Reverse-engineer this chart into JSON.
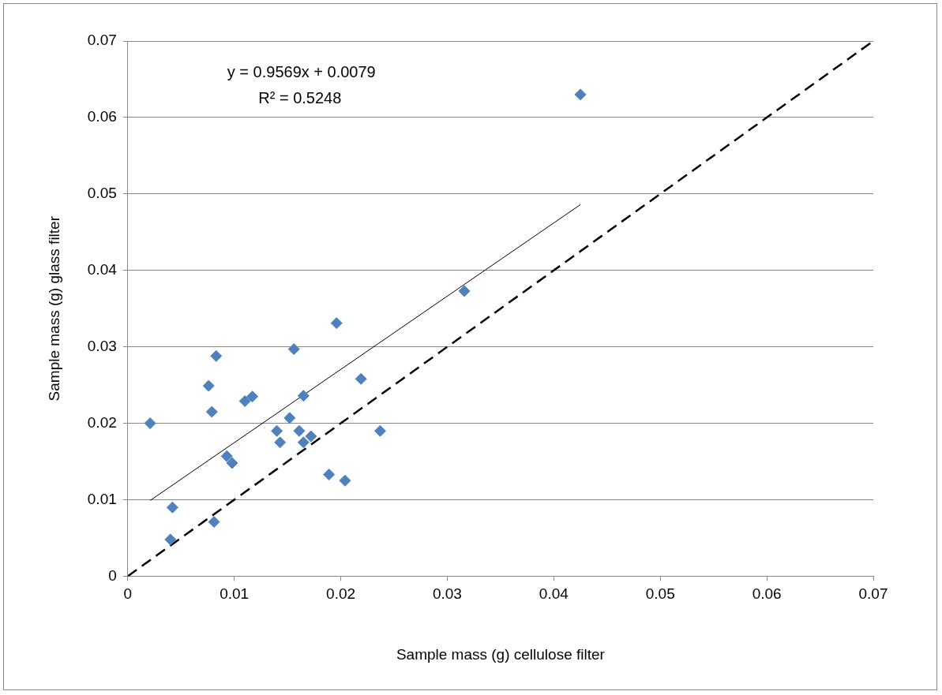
{
  "chart_data": {
    "type": "scatter",
    "xlabel": "Sample mass (g) cellulose filter",
    "ylabel": "Sample mass (g) glass filter",
    "xlim": [
      0,
      0.07
    ],
    "xticks": [
      0,
      0.01,
      0.02,
      0.03,
      0.04,
      0.05,
      0.06,
      0.07
    ],
    "ylim": [
      0,
      0.07
    ],
    "yticks": [
      0,
      0.01,
      0.02,
      0.03,
      0.04,
      0.05,
      0.06,
      0.07
    ],
    "grid": "y",
    "legend": false,
    "annotations": [
      "y = 0.9569x + 0.0079",
      "R² = 0.5248"
    ],
    "series": [
      {
        "color": "#4f81bd",
        "marker": "diamond",
        "x": [
          0.0021,
          0.0042,
          0.004,
          0.0081,
          0.0076,
          0.0079,
          0.0083,
          0.0093,
          0.0098,
          0.011,
          0.0117,
          0.014,
          0.0143,
          0.0152,
          0.0156,
          0.0161,
          0.0165,
          0.0165,
          0.0172,
          0.0189,
          0.0204,
          0.0219,
          0.0237,
          0.0196,
          0.0316,
          0.0425
        ],
        "values": [
          0.02,
          0.009,
          0.0048,
          0.0071,
          0.0249,
          0.0215,
          0.0288,
          0.0157,
          0.0148,
          0.0229,
          0.0235,
          0.019,
          0.0175,
          0.0207,
          0.0297,
          0.019,
          0.0236,
          0.0175,
          0.0183,
          0.0133,
          0.0125,
          0.0258,
          0.019,
          0.0331,
          0.0373,
          0.063
        ]
      },
      {
        "type": "line",
        "color": "#000000",
        "marker": "none",
        "line_style": "solid",
        "x": [
          0.0021,
          0.0425
        ],
        "values": [
          0.0099,
          0.0486
        ]
      },
      {
        "type": "line",
        "color": "#000000",
        "marker": "none",
        "line_style": "dashed",
        "x": [
          0,
          0.07
        ],
        "values": [
          0,
          0.07
        ]
      }
    ]
  }
}
